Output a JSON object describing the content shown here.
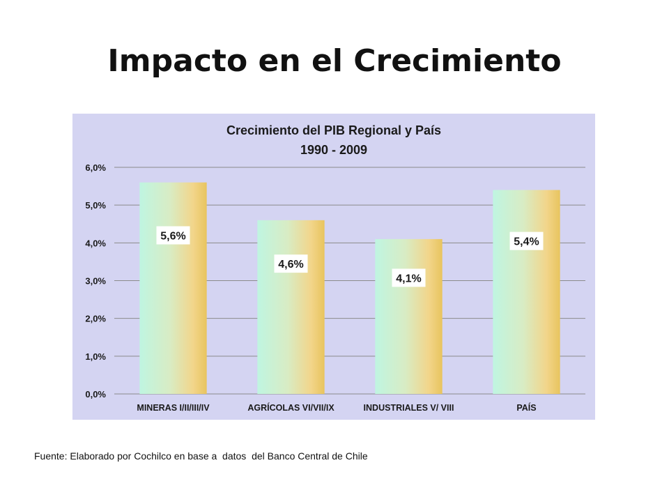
{
  "slide": {
    "title": "Impacto en el Crecimiento",
    "source": "Fuente: Elaborado por Cochilco en base a  datos  del Banco Central de Chile"
  },
  "colors": {
    "plot_background": "#d4d4f2",
    "bar_gradient": [
      "#bff5e1",
      "#d8ecc4",
      "#f2d58a",
      "#e8c45e"
    ],
    "label_background": "#ffffff",
    "gridline": "#8a8a8a",
    "text": "#1a1a1a"
  },
  "chart_data": {
    "type": "bar",
    "title": "Crecimiento del PIB Regional y País",
    "subtitle": "1990 - 2009",
    "categories": [
      "MINERAS I/II/III/IV",
      "AGRÍCOLAS VI/VII/IX",
      "INDUSTRIALES V/ VIII",
      "PAÍS"
    ],
    "values": [
      5.6,
      4.6,
      4.1,
      5.4
    ],
    "data_labels": [
      "5,6%",
      "4,6%",
      "4,1%",
      "5,4%"
    ],
    "ylim": [
      0,
      6
    ],
    "yticks": [
      0,
      1,
      2,
      3,
      4,
      5,
      6
    ],
    "ytick_labels": [
      "0,0%",
      "1,0%",
      "2,0%",
      "3,0%",
      "4,0%",
      "5,0%",
      "6,0%"
    ],
    "xlabel": "",
    "ylabel": "",
    "grid": true,
    "legend": false
  }
}
